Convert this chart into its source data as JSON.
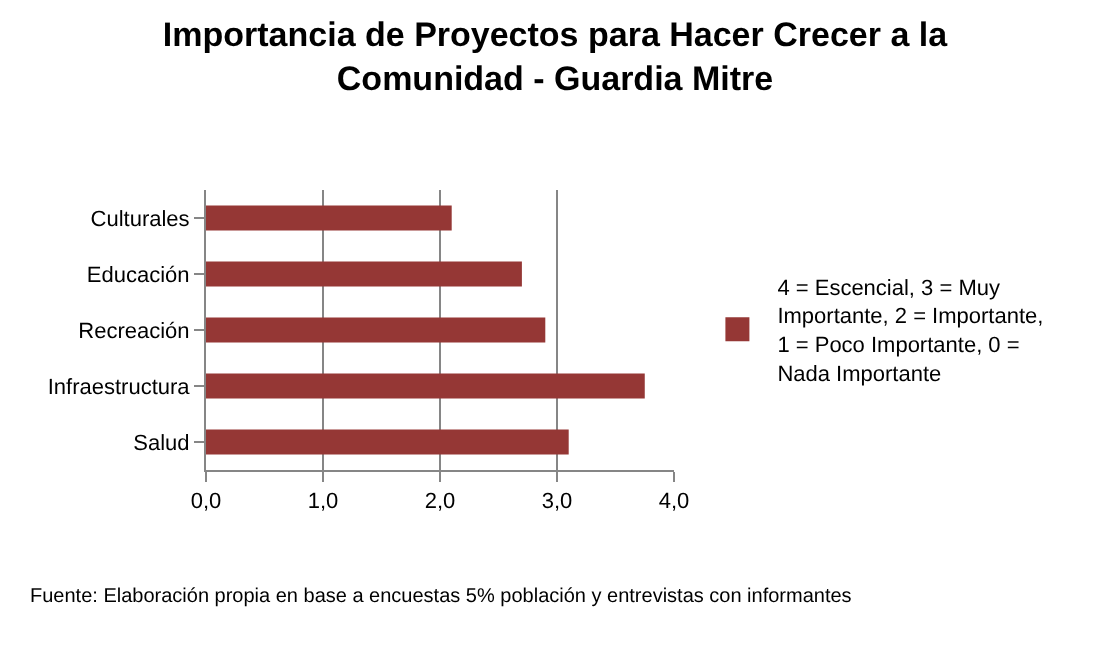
{
  "chart_data": {
    "type": "bar",
    "orientation": "horizontal",
    "title": "Importancia de Proyectos para Hacer Crecer a la Comunidad - Guardia Mitre",
    "categories": [
      "Culturales",
      "Educación",
      "Recreación",
      "Infraestructura",
      "Salud"
    ],
    "series": [
      {
        "name": "4 = Escencial, 3 = Muy Importante, 2 = Importante, 1 = Poco Importante, 0 = Nada Importante",
        "color": "#953735",
        "values": [
          2.1,
          2.7,
          2.9,
          3.75,
          3.1
        ]
      }
    ],
    "xlim": [
      0,
      4
    ],
    "xticks": [
      {
        "value": 0,
        "label": "0,0"
      },
      {
        "value": 1,
        "label": "1,0"
      },
      {
        "value": 2,
        "label": "2,0"
      },
      {
        "value": 3,
        "label": "3,0"
      },
      {
        "value": 4,
        "label": "4,0"
      }
    ],
    "grid": "x",
    "legend": "right",
    "annotations": [
      "Fuente: Elaboración propia en base a encuestas 5% población y entrevistas con informantes"
    ]
  }
}
